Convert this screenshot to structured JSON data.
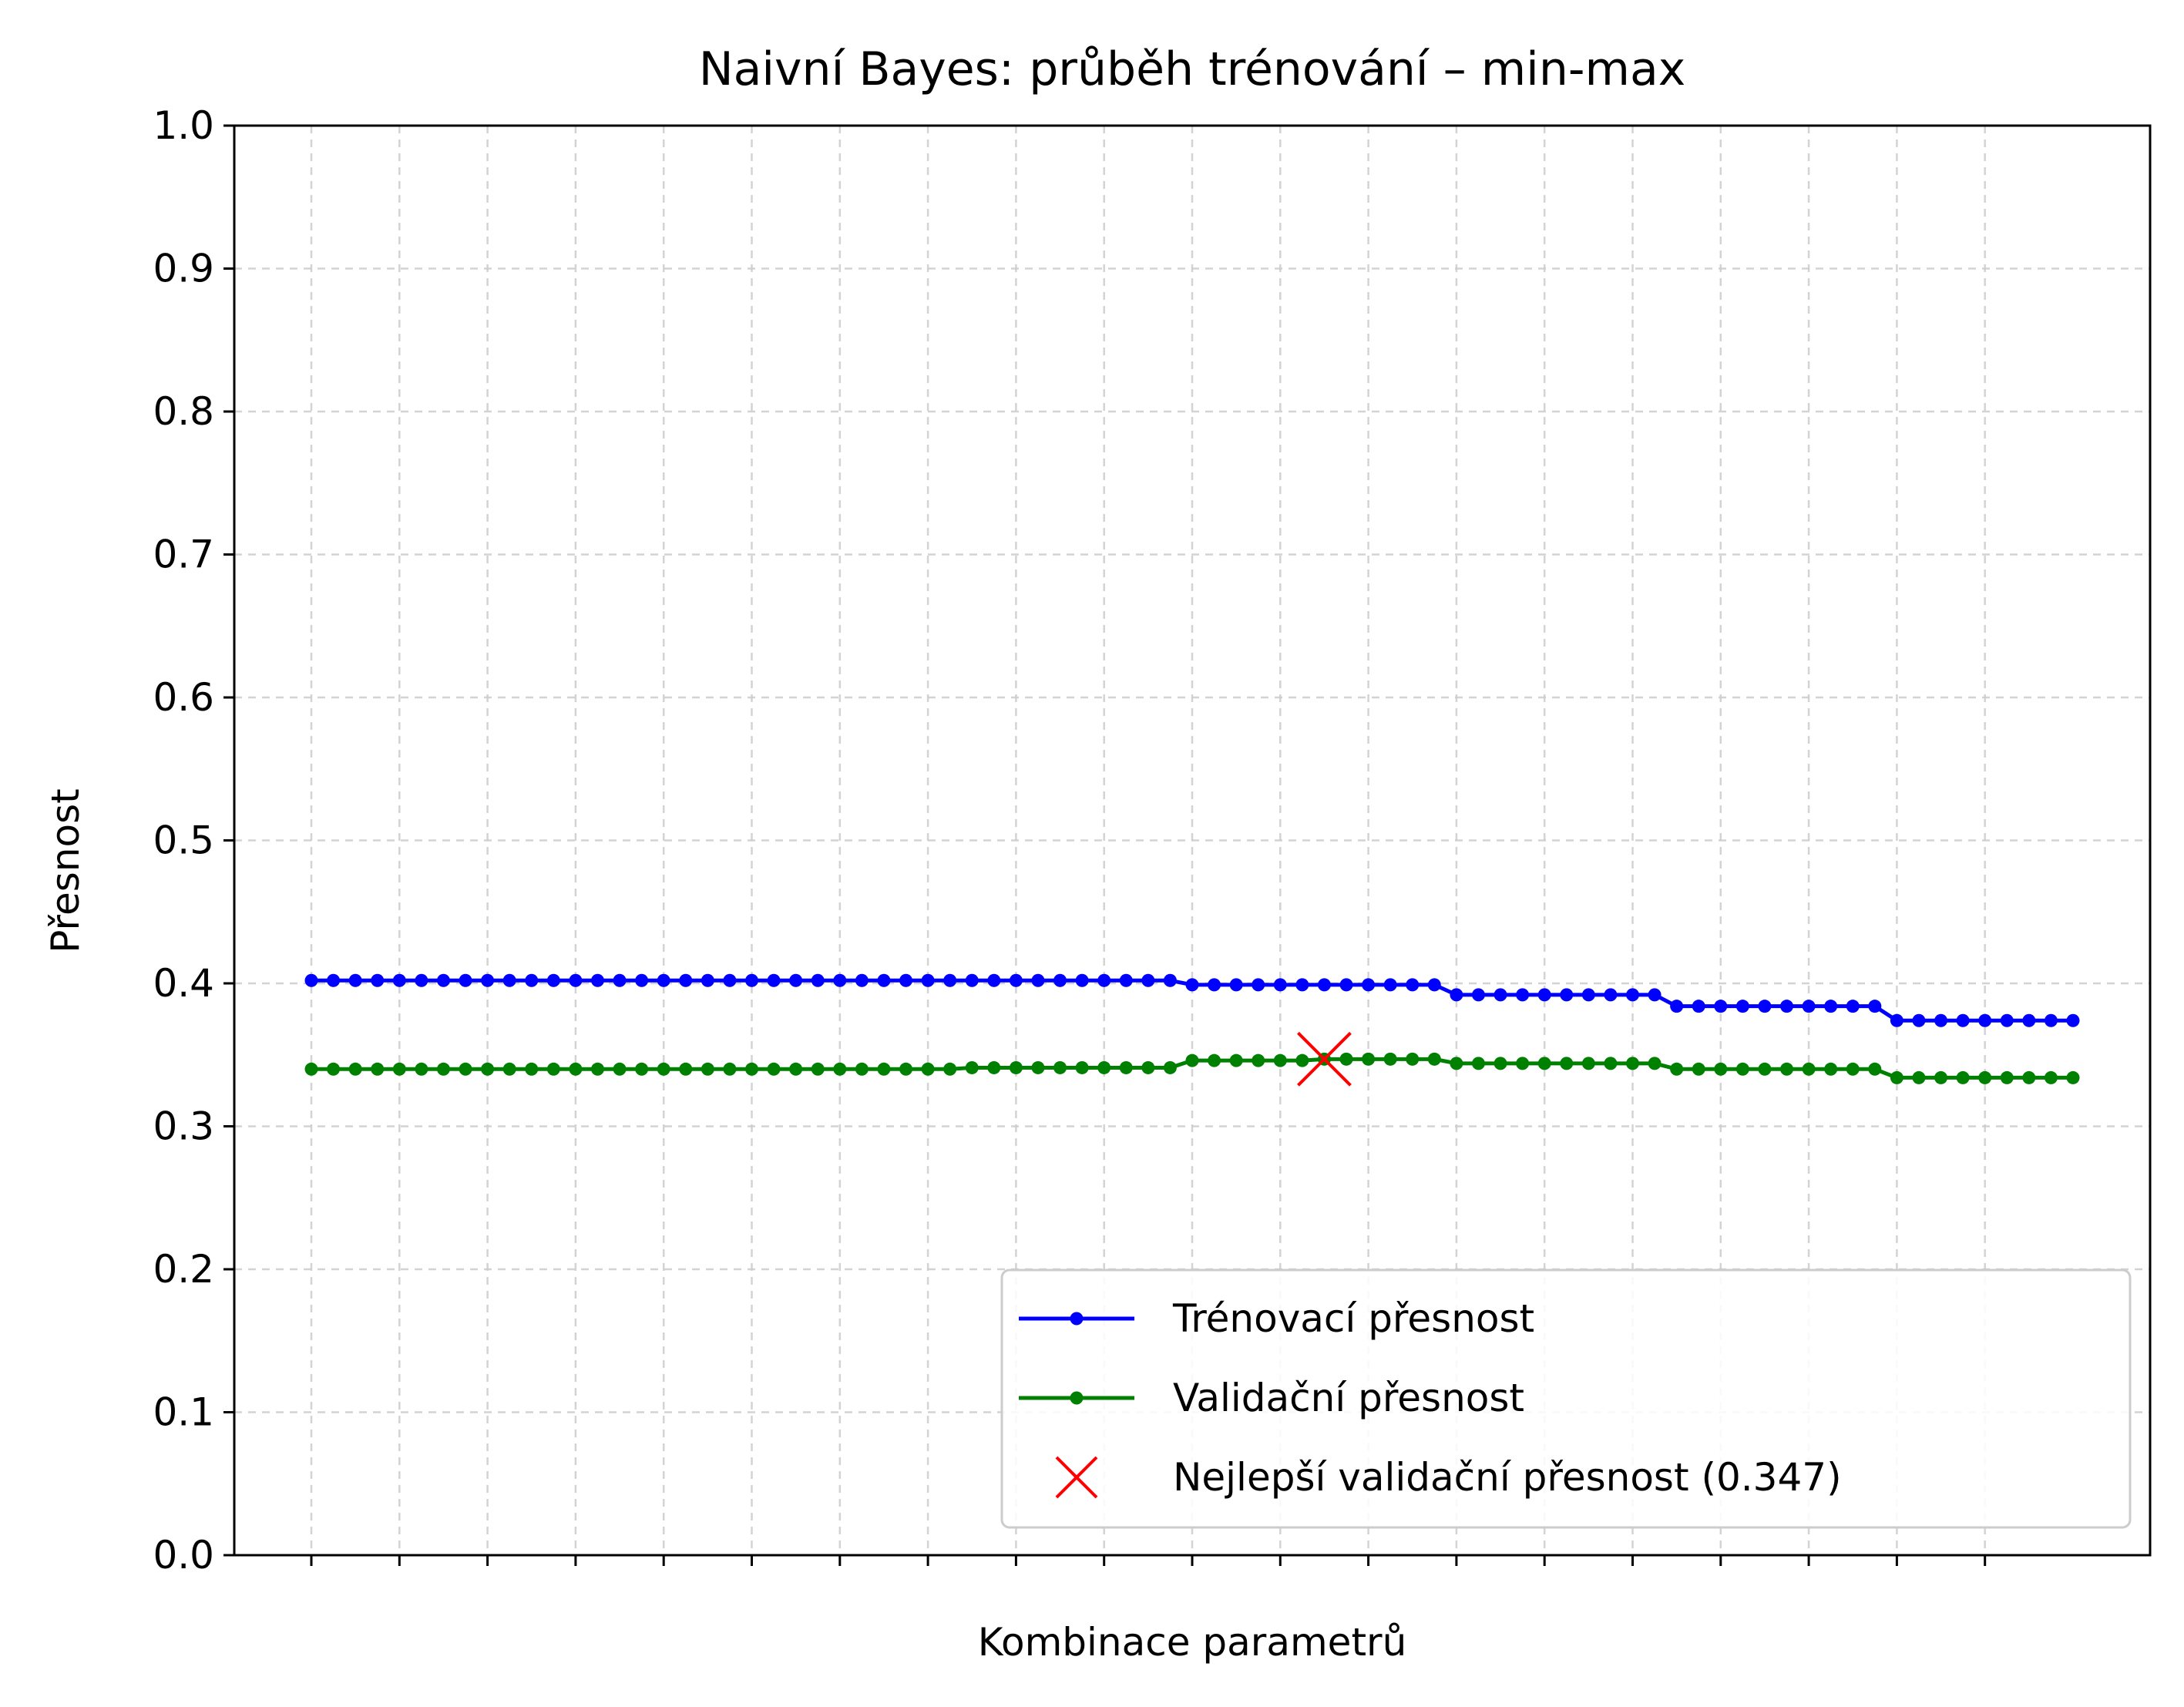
{
  "chart_data": {
    "type": "line",
    "title": "Naivní Bayes: průběh trénování – min-max",
    "xlabel": "Kombinace parametrů",
    "ylabel": "Přesnost",
    "ylim": [
      0.0,
      1.0
    ],
    "xlim": [
      -3.5,
      83.5
    ],
    "yticks": [
      "0.0",
      "0.1",
      "0.2",
      "0.3",
      "0.4",
      "0.5",
      "0.6",
      "0.7",
      "0.8",
      "0.9",
      "1.0"
    ],
    "xtick_count": 20,
    "xtick_step": 4,
    "grid": true,
    "legend_position": "lower right",
    "colors": {
      "train": "#0000ff",
      "validation": "#008000",
      "best": "#ff0000"
    },
    "series": [
      {
        "name": "Trénovací přesnost",
        "color": "#0000ff",
        "values": [
          0.402,
          0.402,
          0.402,
          0.402,
          0.402,
          0.402,
          0.402,
          0.402,
          0.402,
          0.402,
          0.402,
          0.402,
          0.402,
          0.402,
          0.402,
          0.402,
          0.402,
          0.402,
          0.402,
          0.402,
          0.402,
          0.402,
          0.402,
          0.402,
          0.402,
          0.402,
          0.402,
          0.402,
          0.402,
          0.402,
          0.402,
          0.402,
          0.402,
          0.402,
          0.402,
          0.402,
          0.402,
          0.402,
          0.402,
          0.402,
          0.399,
          0.399,
          0.399,
          0.399,
          0.399,
          0.399,
          0.399,
          0.399,
          0.399,
          0.399,
          0.399,
          0.399,
          0.392,
          0.392,
          0.392,
          0.392,
          0.392,
          0.392,
          0.392,
          0.392,
          0.392,
          0.392,
          0.384,
          0.384,
          0.384,
          0.384,
          0.384,
          0.384,
          0.384,
          0.384,
          0.384,
          0.384,
          0.374,
          0.374,
          0.374,
          0.374,
          0.374,
          0.374,
          0.374,
          0.374,
          0.374
        ]
      },
      {
        "name": "Validační přesnost",
        "color": "#008000",
        "values": [
          0.34,
          0.34,
          0.34,
          0.34,
          0.34,
          0.34,
          0.34,
          0.34,
          0.34,
          0.34,
          0.34,
          0.34,
          0.34,
          0.34,
          0.34,
          0.34,
          0.34,
          0.34,
          0.34,
          0.34,
          0.34,
          0.34,
          0.34,
          0.34,
          0.34,
          0.34,
          0.34,
          0.34,
          0.34,
          0.34,
          0.341,
          0.341,
          0.341,
          0.341,
          0.341,
          0.341,
          0.341,
          0.341,
          0.341,
          0.341,
          0.346,
          0.346,
          0.346,
          0.346,
          0.346,
          0.346,
          0.347,
          0.347,
          0.347,
          0.347,
          0.347,
          0.347,
          0.344,
          0.344,
          0.344,
          0.344,
          0.344,
          0.344,
          0.344,
          0.344,
          0.344,
          0.344,
          0.34,
          0.34,
          0.34,
          0.34,
          0.34,
          0.34,
          0.34,
          0.34,
          0.34,
          0.34,
          0.334,
          0.334,
          0.334,
          0.334,
          0.334,
          0.334,
          0.334,
          0.334,
          0.334
        ]
      }
    ],
    "best": {
      "x": 46,
      "y": 0.347,
      "label": "Nejlepší validační přesnost (0.347)"
    }
  }
}
